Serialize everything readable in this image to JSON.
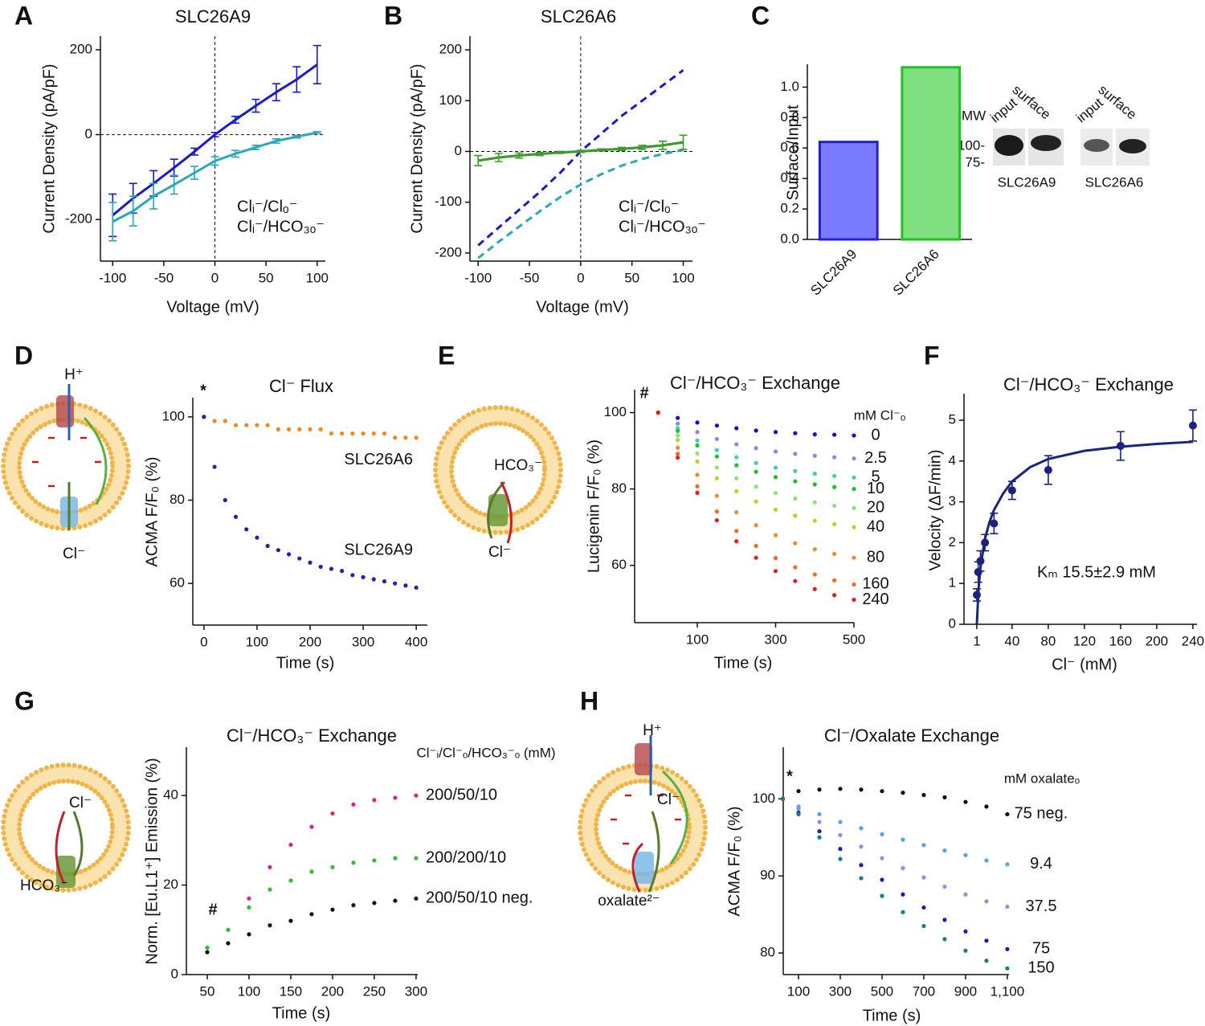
{
  "panel_labels": [
    "A",
    "B",
    "C",
    "D",
    "E",
    "F",
    "G",
    "H"
  ],
  "schematics": {
    "D": [
      "H⁺",
      "Cl⁻"
    ],
    "E": [
      "HCO₃⁻",
      "Cl⁻"
    ],
    "G": [
      "Cl⁻",
      "HCO₃⁻"
    ],
    "H": [
      "H⁺",
      "Cl⁻",
      "oxalate²⁻"
    ]
  },
  "blot": {
    "mw": "MW",
    "markers": [
      "100-",
      "75-"
    ],
    "lanes": [
      "input",
      "surface",
      "input",
      "surface"
    ],
    "proteins": [
      "SLC26A9",
      "SLC26A6"
    ]
  },
  "chart_data": [
    {
      "type": "line",
      "title": "SLC26A9",
      "x_label": "Voltage (mV)",
      "y_label": "Current Density (pA/pF)",
      "x": [
        -100,
        -80,
        -60,
        -40,
        -20,
        0,
        20,
        40,
        60,
        80,
        100
      ],
      "xlim": [
        -112,
        108
      ],
      "ylim": [
        -298,
        232
      ],
      "xticks": [
        -100,
        -50,
        0,
        50,
        100
      ],
      "yticks": [
        -200,
        0,
        200
      ],
      "zero_lines": true,
      "legend": "lower right",
      "series": [
        {
          "name": "Clᵢ⁻/Clₒ⁻",
          "color": "#1a1ac8",
          "values": [
            -190,
            -150,
            -115,
            -78,
            -40,
            0,
            35,
            68,
            100,
            130,
            165
          ],
          "errors": [
            50,
            35,
            30,
            20,
            8,
            5,
            8,
            15,
            20,
            30,
            45
          ]
        },
        {
          "name": "Clᵢ⁻/HCO₃ₒ⁻",
          "color": "#2aa8b8",
          "values": [
            -205,
            -180,
            -145,
            -118,
            -90,
            -62,
            -45,
            -30,
            -15,
            -5,
            5
          ],
          "errors": [
            45,
            35,
            30,
            22,
            15,
            10,
            8,
            5,
            5,
            3,
            2
          ]
        }
      ]
    },
    {
      "type": "line",
      "title": "SLC26A6",
      "x_label": "Voltage (mV)",
      "y_label": "Current Density (pA/pF)",
      "x": [
        -100,
        -80,
        -60,
        -40,
        -20,
        0,
        20,
        40,
        60,
        80,
        100
      ],
      "xlim": [
        -108,
        109
      ],
      "ylim": [
        -216,
        227
      ],
      "xticks": [
        -100,
        -50,
        0,
        50,
        100
      ],
      "yticks": [
        -200,
        -100,
        0,
        100,
        200
      ],
      "zero_lines": true,
      "legend": "lower right",
      "series": [
        {
          "color": "#1a1ac8",
          "dash": true,
          "values": [
            -185,
            -150,
            -115,
            -80,
            -42,
            0,
            35,
            70,
            100,
            130,
            160
          ]
        },
        {
          "color": "#2aa8b8",
          "dash": true,
          "values": [
            -210,
            -178,
            -148,
            -118,
            -90,
            -65,
            -45,
            -28,
            -15,
            -5,
            3
          ]
        },
        {
          "name": "Clᵢ⁻/Clₒ⁻",
          "color": "#b08a8a",
          "values": [
            -18,
            -12,
            -8,
            -5,
            -2,
            0,
            3,
            5,
            8,
            12,
            18
          ]
        },
        {
          "name": "Clᵢ⁻/HCO₃ₒ⁻",
          "color": "#3a9a2a",
          "values": [
            -18,
            -12,
            -8,
            -5,
            -2,
            0,
            3,
            5,
            8,
            12,
            18
          ],
          "errors": [
            10,
            8,
            5,
            3,
            2,
            2,
            2,
            3,
            4,
            8,
            14
          ]
        }
      ]
    },
    {
      "type": "bar",
      "y_label": "Surface/Input",
      "categories": [
        "SLC26A9",
        "SLC26A6"
      ],
      "values": [
        0.64,
        1.13
      ],
      "colors": [
        "#7b7bff",
        "#80e080"
      ],
      "edgecolors": [
        "#2020d0",
        "#20c020"
      ],
      "ylim": [
        0,
        1.15
      ],
      "yticks": [
        {
          "value": 0,
          "label": "0.0"
        },
        {
          "value": 0.2,
          "label": "0.2"
        },
        {
          "value": 0.4,
          "label": "0.4"
        },
        {
          "value": 0.6,
          "label": "0.6"
        },
        {
          "value": 0.8,
          "label": "0.8"
        },
        {
          "value": 1,
          "label": "1.0"
        }
      ]
    },
    {
      "type": "scatter",
      "title": "Cl⁻ Flux",
      "x_label": "Time (s)",
      "y_label": "ACMA F/F₀ (%)",
      "annotations": [
        "*"
      ],
      "x": [
        0,
        20,
        40,
        60,
        80,
        100,
        120,
        140,
        160,
        180,
        200,
        220,
        240,
        260,
        280,
        300,
        320,
        340,
        360,
        380,
        400
      ],
      "xlim": [
        -21,
        421
      ],
      "ylim": [
        50,
        104.6
      ],
      "xticks": [
        0,
        100,
        200,
        300,
        400
      ],
      "yticks": [
        60,
        80,
        100
      ],
      "legend": "end",
      "series": [
        {
          "name": "SLC26A6",
          "color": "#f08a20",
          "values": [
            100,
            99,
            99,
            98,
            98,
            98,
            98,
            97,
            97,
            97,
            97,
            97,
            96,
            96,
            96,
            96,
            96,
            96,
            95,
            95,
            95
          ]
        },
        {
          "name": "SLC26A9",
          "color": "#2222b0",
          "values": [
            100,
            88,
            80,
            76,
            73,
            71,
            69,
            68,
            67,
            66,
            65,
            64,
            63.5,
            63,
            62,
            61.5,
            61,
            60.5,
            60,
            59.5,
            59
          ]
        }
      ]
    },
    {
      "type": "scatter",
      "title": "Cl⁻/HCO₃⁻ Exchange",
      "x_label": "Time (s)",
      "y_label": "Lucigenin F/F₀ (%)",
      "annotations": [
        "#"
      ],
      "legend_title": "mM Cl⁻ₒ",
      "x": [
        0,
        50,
        100,
        150,
        200,
        250,
        300,
        350,
        400,
        450,
        500
      ],
      "xlim": [
        -60,
        500
      ],
      "ylim": [
        45,
        106
      ],
      "xticks": [
        100,
        300,
        500
      ],
      "yticks": [
        60,
        80,
        100
      ],
      "legend": "end",
      "series": [
        {
          "name": "0",
          "color": "#1010d0",
          "values": [
            100,
            98.6,
            97.4,
            96.6,
            95.9,
            95.3,
            94.9,
            94.6,
            94.3,
            94.2,
            94
          ]
        },
        {
          "name": "2.5",
          "color": "#8a8ae0",
          "values": [
            100,
            97.1,
            94.9,
            93.1,
            91.7,
            90.7,
            89.8,
            89.2,
            88.7,
            88.3,
            88
          ]
        },
        {
          "name": "5",
          "color": "#40d0b0",
          "values": [
            100,
            95.9,
            92.7,
            90.2,
            88.3,
            86.8,
            85.6,
            84.7,
            84,
            83.4,
            83
          ]
        },
        {
          "name": "10",
          "color": "#20c020",
          "values": [
            100,
            95.2,
            91.4,
            88.5,
            86.2,
            84.5,
            83.1,
            82,
            81.2,
            80.5,
            80
          ]
        },
        {
          "name": "20",
          "color": "#90e080",
          "values": [
            100,
            94,
            89.3,
            85.6,
            82.8,
            80.6,
            78.9,
            77.5,
            76.5,
            75.6,
            75
          ]
        },
        {
          "name": "40",
          "color": "#c0d020",
          "values": [
            100,
            92.8,
            87.2,
            82.8,
            79.4,
            76.7,
            74.6,
            73,
            71.7,
            70.8,
            70
          ]
        },
        {
          "name": "80",
          "color": "#f08a30",
          "values": [
            100,
            90.8,
            83.7,
            78.2,
            73.9,
            70.5,
            67.9,
            65.8,
            64.2,
            63,
            62
          ]
        },
        {
          "name": "160",
          "color": "#f06a20",
          "values": [
            100,
            89.2,
            80.7,
            74.1,
            69,
            65.1,
            61.9,
            59.5,
            57.6,
            56.1,
            55
          ]
        },
        {
          "name": "240",
          "color": "#e02020",
          "values": [
            100,
            88.2,
            79,
            71.8,
            66.3,
            62,
            58.5,
            55.9,
            53.8,
            52.2,
            51
          ]
        }
      ]
    },
    {
      "type": "scatter",
      "title": "Cl⁻/HCO₃⁻ Exchange",
      "x_label": "Cl⁻ (mM)",
      "y_label": "Velocity (ΔF/min)",
      "annotations": [
        "Kₘ 15.5±2.9 mM"
      ],
      "x": [
        1,
        2.5,
        5,
        10,
        20,
        40,
        80,
        160,
        240
      ],
      "xlim": [
        -13.2,
        244.5
      ],
      "ylim": [
        0,
        5.65
      ],
      "xticks": [
        1,
        40,
        80,
        120,
        160,
        200,
        240
      ],
      "yticks": [
        0,
        1,
        2,
        3,
        4,
        5
      ],
      "fit": {
        "color": "#1a237e",
        "x": [
          1,
          3,
          5,
          10,
          15,
          20,
          30,
          40,
          60,
          80,
          120,
          160,
          200,
          240
        ],
        "values": [
          0,
          0.9,
          1.4,
          2.1,
          2.5,
          2.8,
          3.2,
          3.5,
          3.85,
          4.05,
          4.25,
          4.35,
          4.42,
          4.47
        ]
      },
      "series": [
        {
          "color": "#1a237e",
          "values": [
            0.72,
            1.28,
            1.55,
            2,
            2.47,
            3.28,
            3.78,
            4.37,
            4.87
          ],
          "errors": [
            0.15,
            0.25,
            0.25,
            0.2,
            0.25,
            0.22,
            0.35,
            0.35,
            0.38
          ]
        }
      ]
    },
    {
      "type": "scatter",
      "title": "Cl⁻/HCO₃⁻ Exchange",
      "x_label": "Time (s)",
      "y_label": "Norm. [Eu.L1⁺] Emission (%)",
      "annotations": [
        "#"
      ],
      "legend_title": "Cl⁻ᵢ/Cl⁻ₒ/HCO₃⁻ₒ (mM)",
      "x": [
        50,
        75,
        100,
        125,
        150,
        175,
        200,
        225,
        250,
        275,
        300
      ],
      "xlim": [
        25,
        302
      ],
      "ylim": [
        0,
        50.8
      ],
      "xticks": [
        50,
        100,
        150,
        200,
        250,
        300
      ],
      "yticks": [
        0,
        20,
        40
      ],
      "legend": "end",
      "series": [
        {
          "name": "200/50/10",
          "color": "#e0208a",
          "values": [
            6,
            10,
            17,
            24,
            29,
            33,
            36,
            38,
            39,
            39.5,
            40
          ]
        },
        {
          "name": "200/200/10",
          "color": "#30c030",
          "values": [
            6,
            10,
            15,
            19,
            21,
            23,
            24,
            25,
            25.5,
            26,
            26
          ]
        },
        {
          "name": "200/50/10 neg.",
          "color": "#111111",
          "values": [
            5,
            7,
            9,
            11,
            12,
            13.5,
            14.5,
            15.5,
            16,
            16.5,
            17
          ]
        }
      ]
    },
    {
      "type": "scatter",
      "title": "Cl⁻/Oxalate Exchange",
      "x_label": "Time (s)",
      "y_label": "ACMA F/F₀ (%)",
      "annotations": [
        "*"
      ],
      "legend_title": "mM oxalateₒ",
      "x": [
        25,
        100,
        200,
        300,
        400,
        500,
        600,
        700,
        800,
        900,
        1000,
        1100
      ],
      "xlim": [
        27,
        1108
      ],
      "ylim": [
        77.2,
        106.7
      ],
      "xticks": [
        100,
        300,
        500,
        700,
        900,
        {
          "value": 1100,
          "label": "1,100"
        }
      ],
      "yticks": [
        80,
        90,
        100
      ],
      "legend": "end",
      "series": [
        {
          "name": "75 neg.",
          "color": "#111111",
          "values": [
            100,
            101,
            101.2,
            101.3,
            101.2,
            101,
            100.8,
            100.5,
            100.2,
            99.6,
            99,
            98
          ]
        },
        {
          "name": "9.4",
          "color": "#4aa8e8",
          "values": [
            100,
            99,
            98,
            97,
            96.2,
            95.4,
            94.7,
            94,
            93.3,
            92.7,
            92,
            91.5
          ]
        },
        {
          "name": "37.5",
          "color": "#9a8ae0",
          "values": [
            100,
            98.7,
            97,
            95.3,
            93.8,
            92.3,
            91,
            89.8,
            88.6,
            87.6,
            86.7,
            86
          ]
        },
        {
          "name": "75",
          "color": "#1a1ab8",
          "values": [
            100,
            98.2,
            95.8,
            93.5,
            91.4,
            89.5,
            87.6,
            85.9,
            84.3,
            82.8,
            81.6,
            80.5
          ]
        },
        {
          "name": "150",
          "color": "#108080",
          "values": [
            100,
            98,
            95,
            92.2,
            89.7,
            87.4,
            85.3,
            83.5,
            81.8,
            80.3,
            79,
            78
          ]
        }
      ]
    }
  ]
}
